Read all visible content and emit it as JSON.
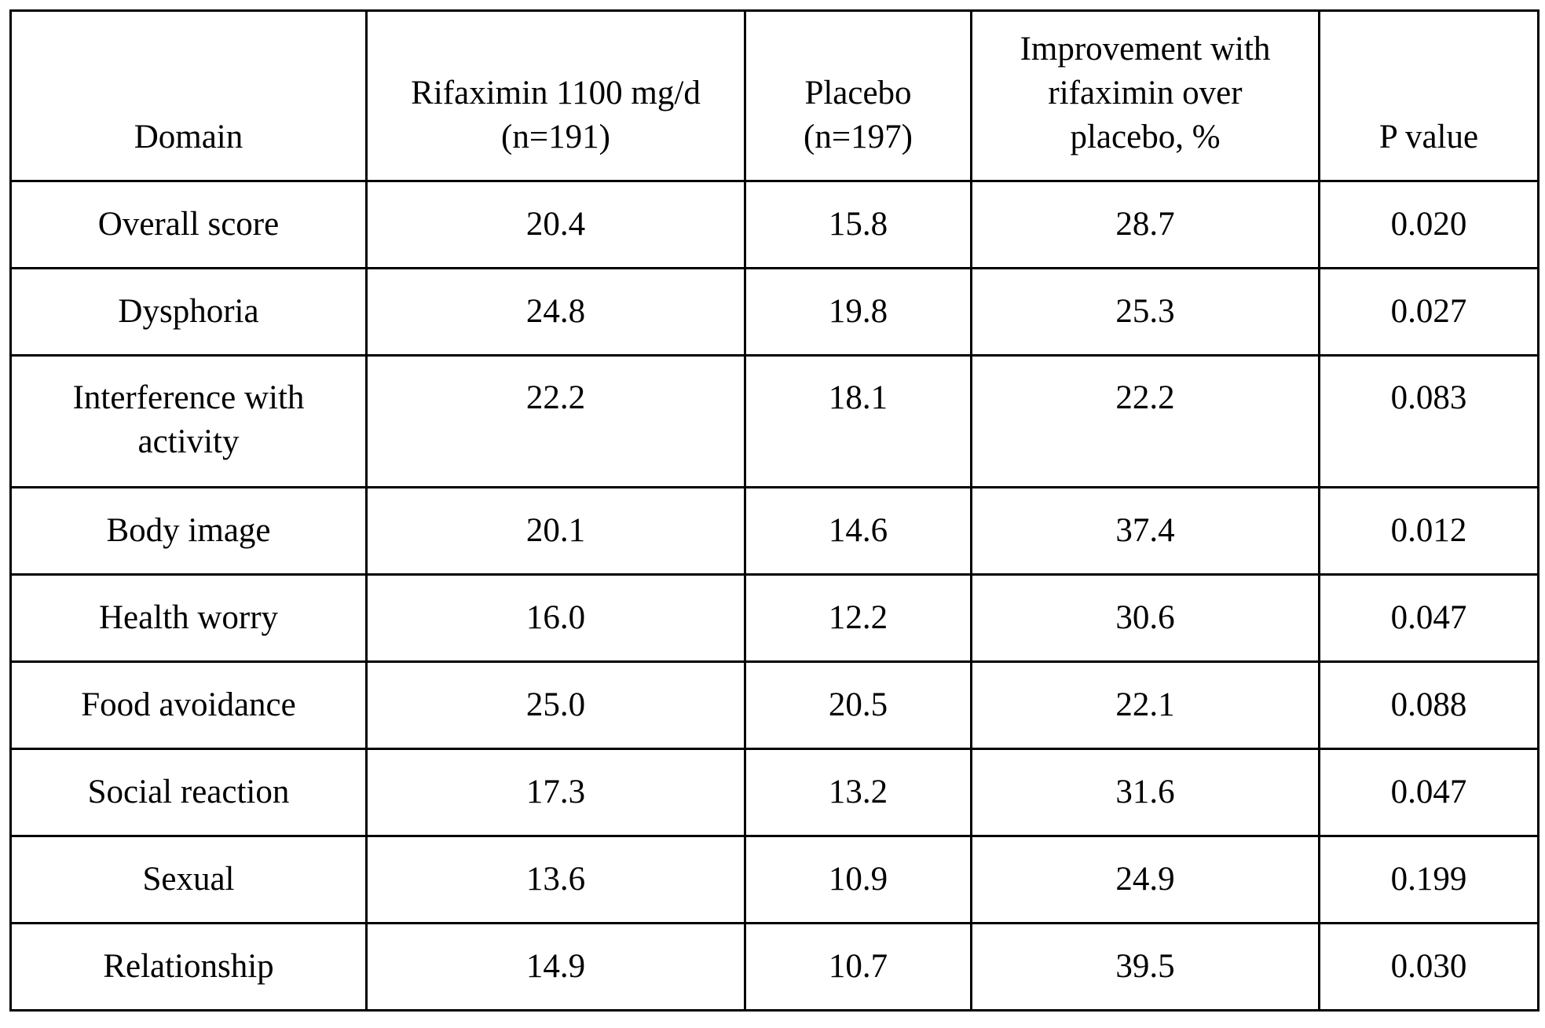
{
  "table": {
    "headers": [
      "Domain",
      "Rifaximin 1100 mg/d\n(n=191)",
      "Placebo\n(n=197)",
      "Improvement with\nrifaximin over\nplacebo, %",
      "P value"
    ],
    "rows": [
      [
        "Overall score",
        "20.4",
        "15.8",
        "28.7",
        "0.020"
      ],
      [
        "Dysphoria",
        "24.8",
        "19.8",
        "25.3",
        "0.027"
      ],
      [
        "Interference with\nactivity",
        "22.2",
        "18.1",
        "22.2",
        "0.083"
      ],
      [
        "Body image",
        "20.1",
        "14.6",
        "37.4",
        "0.012"
      ],
      [
        "Health worry",
        "16.0",
        "12.2",
        "30.6",
        "0.047"
      ],
      [
        "Food avoidance",
        "25.0",
        "20.5",
        "22.1",
        "0.088"
      ],
      [
        "Social reaction",
        "17.3",
        "13.2",
        "31.6",
        "0.047"
      ],
      [
        "Sexual",
        "13.6",
        "10.9",
        "24.9",
        "0.199"
      ],
      [
        "Relationship",
        "14.9",
        "10.7",
        "39.5",
        "0.030"
      ]
    ]
  }
}
